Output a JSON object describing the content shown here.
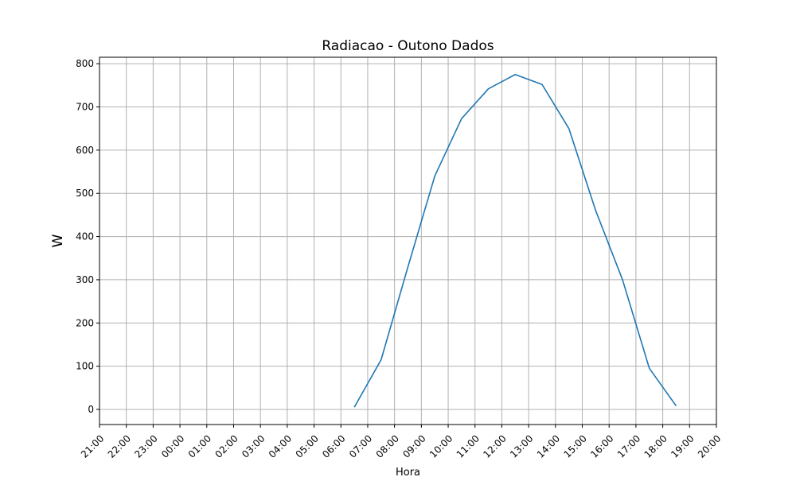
{
  "chart_data": {
    "type": "line",
    "title": "Radiacao - Outono Dados",
    "xlabel": "Hora",
    "ylabel": "W",
    "x_tick_labels": [
      "21:00",
      "22:00",
      "23:00",
      "00:00",
      "01:00",
      "02:00",
      "03:00",
      "04:00",
      "05:00",
      "06:00",
      "07:00",
      "08:00",
      "09:00",
      "10:00",
      "11:00",
      "12:00",
      "13:00",
      "14:00",
      "15:00",
      "16:00",
      "17:00",
      "18:00",
      "19:00",
      "20:00"
    ],
    "y_ticks": [
      0,
      100,
      200,
      300,
      400,
      500,
      600,
      700,
      800
    ],
    "ylim": [
      -35,
      815
    ],
    "grid": true,
    "series": [
      {
        "color": "#1f77b4",
        "x": [
          "06:30",
          "07:30",
          "08:30",
          "09:30",
          "10:30",
          "11:30",
          "12:30",
          "13:30",
          "14:30",
          "15:30",
          "16:30",
          "17:30",
          "18:30"
        ],
        "values": [
          5,
          115,
          330,
          540,
          673,
          742,
          775,
          752,
          650,
          460,
          300,
          95,
          8
        ]
      }
    ],
    "colors": {
      "line": "#1f77b4",
      "grid": "#b0b0b0",
      "axis": "#000000"
    }
  }
}
